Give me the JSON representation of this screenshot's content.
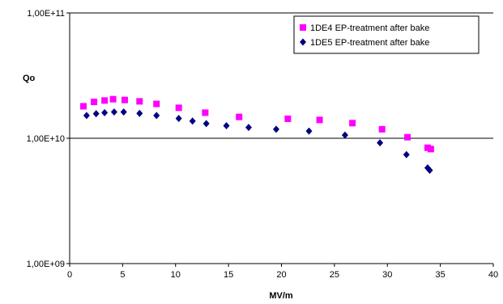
{
  "chart_data": {
    "type": "scatter",
    "xlabel": "MV/m",
    "ylabel": "Qo",
    "xlim": [
      0,
      40
    ],
    "ylim": [
      1000000000.0,
      100000000000.0
    ],
    "yscale": "log",
    "x_ticks": [
      0,
      5,
      10,
      15,
      20,
      25,
      30,
      35,
      40
    ],
    "x_tick_labels": [
      "0",
      "5",
      "10",
      "15",
      "20",
      "25",
      "30",
      "35",
      "40"
    ],
    "y_ticks": [
      1000000000.0,
      10000000000.0,
      100000000000.0
    ],
    "y_tick_labels": [
      "1,00E+09",
      "1,00E+10",
      "1,00E+11"
    ],
    "gridlines": "horizontal major",
    "legend_position": "top-right",
    "series": [
      {
        "name": "1DE4 EP-treatment after bake",
        "marker": "square",
        "color": "#ff00ff",
        "x": [
          1.3,
          2.3,
          3.3,
          4.1,
          5.2,
          6.6,
          8.2,
          10.3,
          12.8,
          16.0,
          20.6,
          23.6,
          26.7,
          29.5,
          31.9,
          33.8,
          34.1
        ],
        "y": [
          18000000000.0,
          19500000000.0,
          20000000000.0,
          20500000000.0,
          20200000000.0,
          19700000000.0,
          18800000000.0,
          17500000000.0,
          16000000000.0,
          14800000000.0,
          14300000000.0,
          14000000000.0,
          13200000000.0,
          11800000000.0,
          10200000000.0,
          8400000000.0,
          8200000000.0
        ]
      },
      {
        "name": "1DE5 EP-treatment after bake",
        "marker": "diamond",
        "color": "#000080",
        "x": [
          1.6,
          2.5,
          3.3,
          4.2,
          5.1,
          6.6,
          8.2,
          10.3,
          11.6,
          12.9,
          14.8,
          16.9,
          19.5,
          22.6,
          26.0,
          29.3,
          31.8,
          33.8,
          34.0
        ],
        "y": [
          15200000000.0,
          15700000000.0,
          16000000000.0,
          16200000000.0,
          16200000000.0,
          15800000000.0,
          15200000000.0,
          14400000000.0,
          13700000000.0,
          13100000000.0,
          12600000000.0,
          12200000000.0,
          11800000000.0,
          11400000000.0,
          10600000000.0,
          9200000000.0,
          7400000000.0,
          5800000000.0,
          5550000000.0
        ]
      }
    ]
  }
}
